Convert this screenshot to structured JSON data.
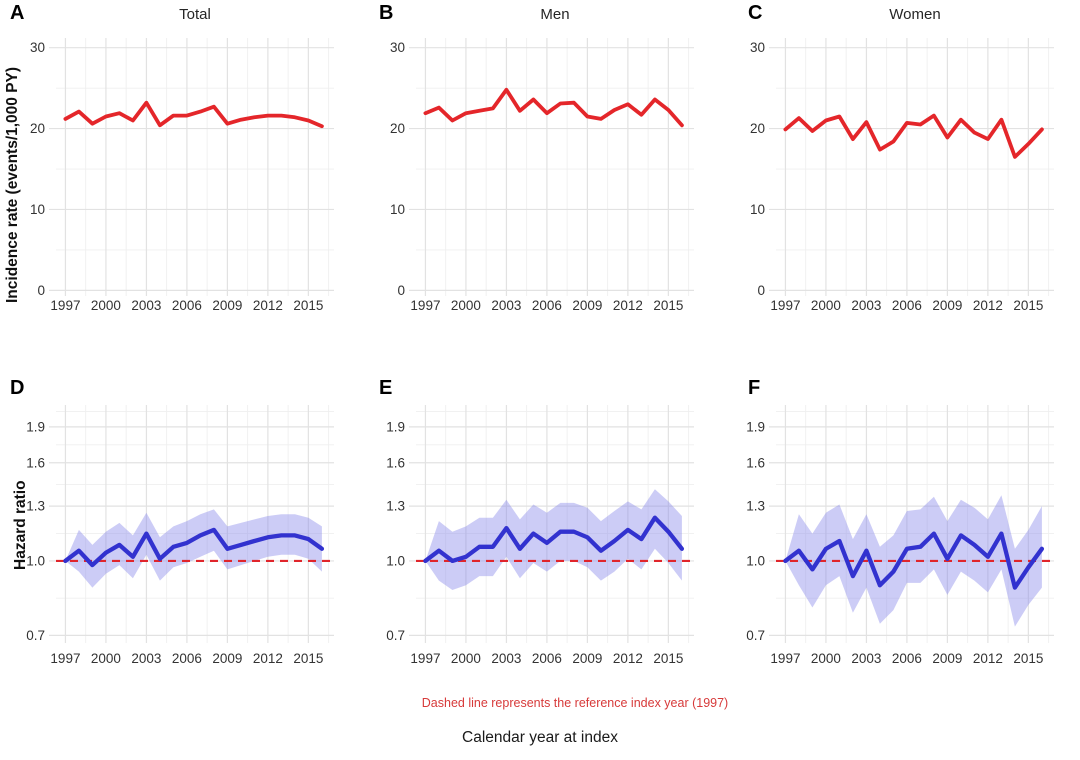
{
  "figure": {
    "footnote": "Dashed line represents the reference index year (1997)",
    "xlabel": "Calendar year at index",
    "colors": {
      "red_line": "#e4262a",
      "blue_line": "#3232cf",
      "band": "#8585ea",
      "ref_line": "#e0252b",
      "grid_major": "#e2e2e2",
      "grid_minor": "#efefef",
      "tick_text": "#333333",
      "footnote": "#d73a3a"
    }
  },
  "chart_data": [
    {
      "panel": "A",
      "title": "Total",
      "type": "line",
      "ylabel": "Incidence rate (events/1,000 PY)",
      "yscale": "linear",
      "ylim": [
        0,
        30
      ],
      "yticks": [
        0,
        10,
        20,
        30
      ],
      "xticks": [
        1997,
        2000,
        2003,
        2006,
        2009,
        2012,
        2015
      ],
      "x": [
        1997,
        1998,
        1999,
        2000,
        2001,
        2002,
        2003,
        2004,
        2005,
        2006,
        2007,
        2008,
        2009,
        2010,
        2011,
        2012,
        2013,
        2014,
        2015,
        2016
      ],
      "y": [
        21.2,
        22.1,
        20.6,
        21.5,
        21.9,
        21.0,
        23.2,
        20.4,
        21.6,
        21.6,
        22.1,
        22.7,
        20.6,
        21.1,
        21.4,
        21.6,
        21.6,
        21.4,
        21.0,
        20.3
      ]
    },
    {
      "panel": "B",
      "title": "Men",
      "type": "line",
      "yscale": "linear",
      "ylim": [
        0,
        30
      ],
      "yticks": [
        0,
        10,
        20,
        30
      ],
      "xticks": [
        1997,
        2000,
        2003,
        2006,
        2009,
        2012,
        2015
      ],
      "x": [
        1997,
        1998,
        1999,
        2000,
        2001,
        2002,
        2003,
        2004,
        2005,
        2006,
        2007,
        2008,
        2009,
        2010,
        2011,
        2012,
        2013,
        2014,
        2015,
        2016
      ],
      "y": [
        21.9,
        22.6,
        21.0,
        21.9,
        22.2,
        22.5,
        24.8,
        22.2,
        23.6,
        21.9,
        23.1,
        23.2,
        21.5,
        21.2,
        22.3,
        23.0,
        21.7,
        23.6,
        22.3,
        20.4
      ]
    },
    {
      "panel": "C",
      "title": "Women",
      "type": "line",
      "yscale": "linear",
      "ylim": [
        0,
        30
      ],
      "yticks": [
        0,
        10,
        20,
        30
      ],
      "xticks": [
        1997,
        2000,
        2003,
        2006,
        2009,
        2012,
        2015
      ],
      "x": [
        1997,
        1998,
        1999,
        2000,
        2001,
        2002,
        2003,
        2004,
        2005,
        2006,
        2007,
        2008,
        2009,
        2010,
        2011,
        2012,
        2013,
        2014,
        2015,
        2016
      ],
      "y": [
        19.9,
        21.3,
        19.7,
        21.0,
        21.5,
        18.7,
        20.8,
        17.4,
        18.4,
        20.7,
        20.5,
        21.6,
        18.9,
        21.1,
        19.5,
        18.7,
        21.1,
        16.5,
        18.1,
        19.9
      ]
    },
    {
      "panel": "D",
      "title": "",
      "type": "line+band",
      "ylabel": "Hazard ratio",
      "yscale": "log",
      "ylim": [
        0.7,
        1.9
      ],
      "yticks": [
        0.7,
        1.0,
        1.3,
        1.6,
        1.9
      ],
      "xticks": [
        1997,
        2000,
        2003,
        2006,
        2009,
        2012,
        2015
      ],
      "ref_line": 1.0,
      "x": [
        1997,
        1998,
        1999,
        2000,
        2001,
        2002,
        2003,
        2004,
        2005,
        2006,
        2007,
        2008,
        2009,
        2010,
        2011,
        2012,
        2013,
        2014,
        2015,
        2016
      ],
      "hr": [
        1.0,
        1.05,
        0.98,
        1.04,
        1.08,
        1.02,
        1.14,
        1.01,
        1.07,
        1.09,
        1.13,
        1.16,
        1.06,
        1.08,
        1.1,
        1.12,
        1.13,
        1.13,
        1.11,
        1.06
      ],
      "ci_lower": [
        1.0,
        0.95,
        0.88,
        0.94,
        0.98,
        0.92,
        1.03,
        0.91,
        0.97,
        0.99,
        1.02,
        1.05,
        0.96,
        0.98,
        1.0,
        1.02,
        1.03,
        1.03,
        1.01,
        0.95
      ],
      "ci_upper": [
        1.0,
        1.16,
        1.08,
        1.15,
        1.2,
        1.13,
        1.26,
        1.12,
        1.18,
        1.21,
        1.25,
        1.28,
        1.18,
        1.2,
        1.22,
        1.24,
        1.25,
        1.25,
        1.23,
        1.18
      ]
    },
    {
      "panel": "E",
      "title": "",
      "type": "line+band",
      "yscale": "log",
      "ylim": [
        0.7,
        1.9
      ],
      "yticks": [
        0.7,
        1.0,
        1.3,
        1.6,
        1.9
      ],
      "xticks": [
        1997,
        2000,
        2003,
        2006,
        2009,
        2012,
        2015
      ],
      "ref_line": 1.0,
      "x": [
        1997,
        1998,
        1999,
        2000,
        2001,
        2002,
        2003,
        2004,
        2005,
        2006,
        2007,
        2008,
        2009,
        2010,
        2011,
        2012,
        2013,
        2014,
        2015,
        2016
      ],
      "hr": [
        1.0,
        1.05,
        1.0,
        1.02,
        1.07,
        1.07,
        1.17,
        1.06,
        1.14,
        1.09,
        1.15,
        1.15,
        1.12,
        1.05,
        1.1,
        1.16,
        1.11,
        1.23,
        1.15,
        1.06
      ],
      "ci_lower": [
        1.0,
        0.91,
        0.87,
        0.89,
        0.93,
        0.93,
        1.02,
        0.92,
        0.99,
        0.95,
        1.0,
        1.0,
        0.97,
        0.91,
        0.95,
        1.01,
        0.96,
        1.06,
        0.99,
        0.91
      ],
      "ci_upper": [
        1.0,
        1.21,
        1.15,
        1.18,
        1.23,
        1.23,
        1.34,
        1.22,
        1.31,
        1.26,
        1.32,
        1.32,
        1.29,
        1.21,
        1.27,
        1.33,
        1.28,
        1.41,
        1.33,
        1.24
      ]
    },
    {
      "panel": "F",
      "title": "",
      "type": "line+band",
      "yscale": "log",
      "ylim": [
        0.7,
        1.9
      ],
      "yticks": [
        0.7,
        1.0,
        1.3,
        1.6,
        1.9
      ],
      "xticks": [
        1997,
        2000,
        2003,
        2006,
        2009,
        2012,
        2015
      ],
      "ref_line": 1.0,
      "x": [
        1997,
        1998,
        1999,
        2000,
        2001,
        2002,
        2003,
        2004,
        2005,
        2006,
        2007,
        2008,
        2009,
        2010,
        2011,
        2012,
        2013,
        2014,
        2015,
        2016
      ],
      "hr": [
        1.0,
        1.05,
        0.96,
        1.06,
        1.1,
        0.93,
        1.05,
        0.89,
        0.95,
        1.06,
        1.07,
        1.14,
        1.01,
        1.13,
        1.08,
        1.02,
        1.14,
        0.88,
        0.97,
        1.06
      ],
      "ci_lower": [
        1.0,
        0.89,
        0.8,
        0.89,
        0.93,
        0.78,
        0.88,
        0.74,
        0.79,
        0.9,
        0.9,
        0.96,
        0.85,
        0.95,
        0.91,
        0.86,
        0.96,
        0.73,
        0.81,
        0.88
      ],
      "ci_upper": [
        1.0,
        1.25,
        1.14,
        1.26,
        1.31,
        1.11,
        1.25,
        1.07,
        1.13,
        1.27,
        1.28,
        1.36,
        1.21,
        1.34,
        1.29,
        1.22,
        1.37,
        1.06,
        1.16,
        1.3
      ]
    }
  ]
}
